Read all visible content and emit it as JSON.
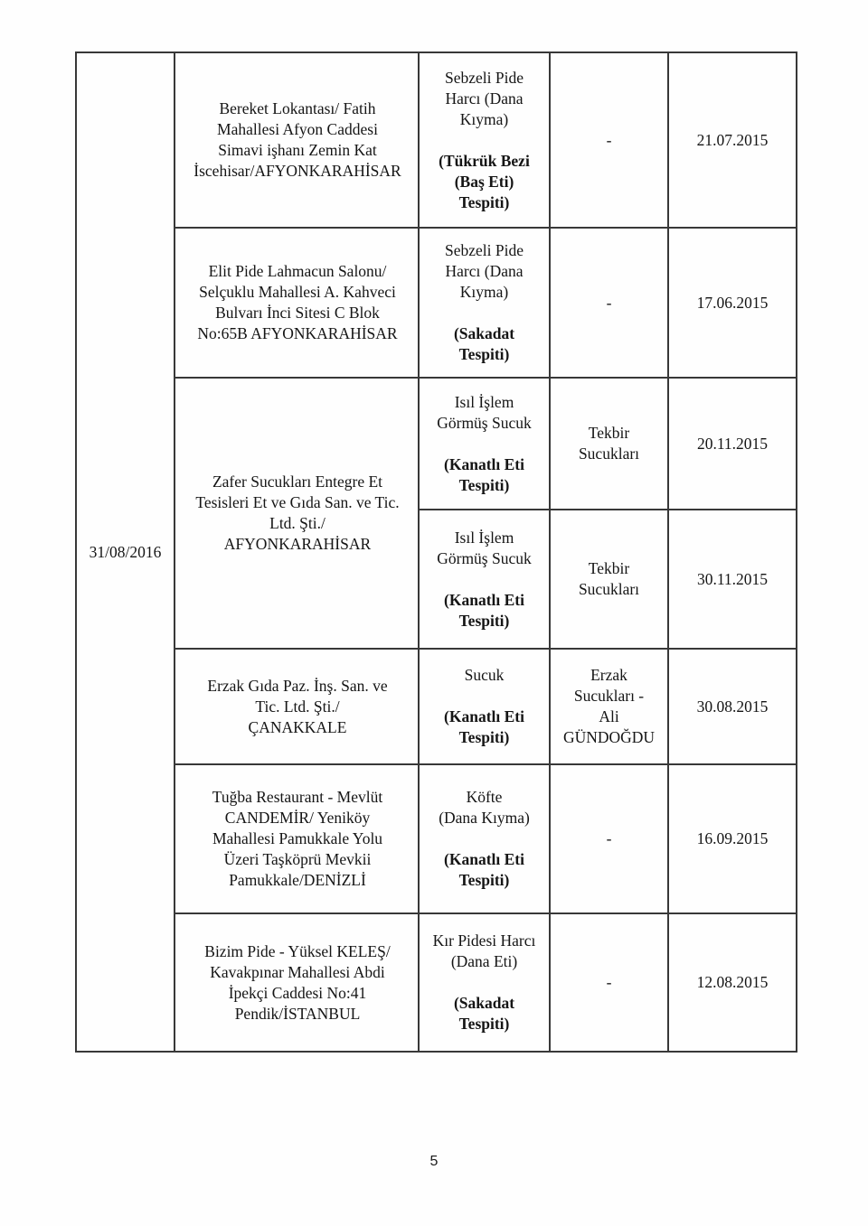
{
  "document": {
    "page_number": "5",
    "report_date": "31/08/2016"
  },
  "table": {
    "rows": [
      {
        "business": "Bereket Lokantası/ Fatih\nMahallesi Afyon Caddesi\nSimavi işhanı Zemin Kat\nİscehisar/AFYONKARAHİSAR",
        "product": "Sebzeli Pide\nHarcı (Dana\nKıyma)",
        "finding": "(Tükrük Bezi\n(Baş Eti)\nTespiti)",
        "brand": "-",
        "date": "21.07.2015"
      },
      {
        "business": "Elit Pide Lahmacun Salonu/\nSelçuklu Mahallesi A. Kahveci\nBulvarı İnci Sitesi C Blok\nNo:65B AFYONKARAHİSAR",
        "product": "Sebzeli Pide\nHarcı (Dana\nKıyma)",
        "finding": "(Sakadat\nTespiti)",
        "brand": "-",
        "date": "17.06.2015"
      },
      {
        "business": "Zafer Sucukları Entegre Et\nTesisleri Et ve Gıda San. ve Tic.\nLtd. Şti./\nAFYONKARAHİSAR",
        "product": "Isıl İşlem\nGörmüş Sucuk",
        "finding": "(Kanatlı Eti\nTespiti)",
        "brand": "Tekbir\nSucukları",
        "date": "20.11.2015"
      },
      {
        "product": "Isıl İşlem\nGörmüş Sucuk",
        "finding": "(Kanatlı Eti\nTespiti)",
        "brand": "Tekbir\nSucukları",
        "date": "30.11.2015"
      },
      {
        "business": "Erzak Gıda Paz. İnş. San. ve\nTic. Ltd. Şti./\nÇANAKKALE",
        "product": "Sucuk",
        "finding": "(Kanatlı Eti\nTespiti)",
        "brand": "Erzak\nSucukları -\nAli\nGÜNDOĞDU",
        "date": "30.08.2015"
      },
      {
        "business": "Tuğba Restaurant - Mevlüt\nCANDEMİR/ Yeniköy\nMahallesi Pamukkale Yolu\nÜzeri Taşköprü Mevkii\nPamukkale/DENİZLİ",
        "product": "Köfte\n(Dana Kıyma)",
        "finding": "(Kanatlı Eti\nTespiti)",
        "brand": "-",
        "date": "16.09.2015"
      },
      {
        "business": "Bizim Pide - Yüksel KELEŞ/\nKavakpınar Mahallesi Abdi\nİpekçi Caddesi No:41\nPendik/İSTANBUL",
        "product": "Kır Pidesi Harcı\n(Dana Eti)",
        "finding": "(Sakadat\nTespiti)",
        "brand": "-",
        "date": "12.08.2015"
      }
    ]
  }
}
